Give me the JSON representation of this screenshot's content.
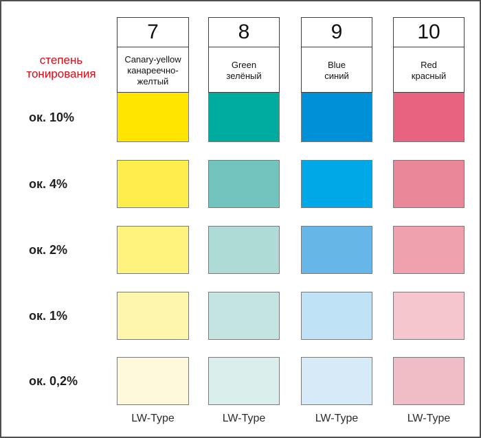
{
  "chart_data": {
    "type": "table",
    "title": "степень\nтонирования",
    "title_translation": "degree of tinting",
    "title_color": "#e30613",
    "row_labels": [
      "ок. 10%",
      "ок. 4%",
      "ок. 2%",
      "ок. 1%",
      "ок. 0,2%"
    ],
    "tint_levels_percent": [
      10,
      4,
      2,
      1,
      0.2
    ],
    "columns": [
      {
        "number": "7",
        "name": "Canary-yellow\nканареечно-\nжелтый",
        "footer": "LW-Type",
        "swatches": [
          "#ffe500",
          "#ffec4d",
          "#fff27d",
          "#fff6ae",
          "#fff9dc"
        ]
      },
      {
        "number": "8",
        "name": "Green\nзелёный",
        "footer": "LW-Type",
        "swatches": [
          "#00aca0",
          "#72c5be",
          "#afdbd7",
          "#c3e4e1",
          "#daeeeb"
        ]
      },
      {
        "number": "9",
        "name": "Blue\nсиний",
        "footer": "LW-Type",
        "swatches": [
          "#0090d8",
          "#00a8e7",
          "#66b6e8",
          "#bfe2f6",
          "#d7eaf7"
        ]
      },
      {
        "number": "10",
        "name": "Red\nкрасный",
        "footer": "LW-Type",
        "swatches": [
          "#e8637f",
          "#ea8899",
          "#efa2ae",
          "#f5c6ce",
          "#f0bdc7"
        ]
      }
    ]
  }
}
